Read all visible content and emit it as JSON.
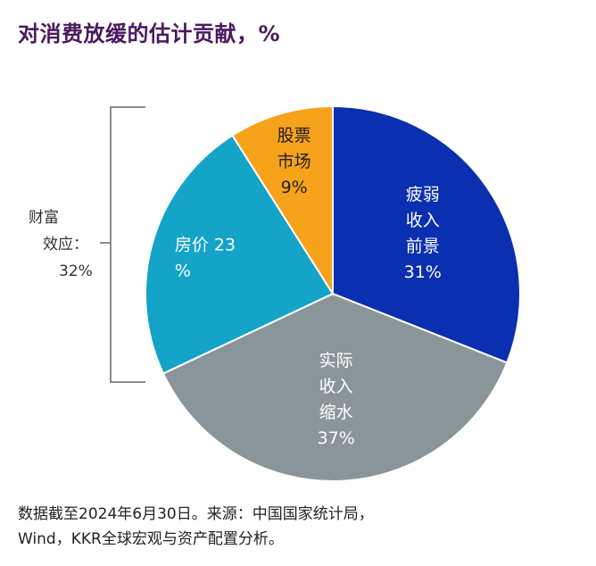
{
  "title": "对消费放缓的估计贡献，%",
  "chart_data": {
    "type": "pie",
    "slices": [
      {
        "lines": [
          "疲弱",
          "收入",
          "前景",
          "31%"
        ],
        "value": 31,
        "color": "#0a2fb0",
        "text_color": "#ffffff"
      },
      {
        "lines": [
          "实际",
          "收入",
          "缩水",
          "37%"
        ],
        "value": 37,
        "color": "#8a959a",
        "text_color": "#ffffff"
      },
      {
        "lines": [
          "房价 23",
          "%"
        ],
        "value": 23,
        "color": "#13a4c8",
        "text_color": "#ffffff"
      },
      {
        "lines": [
          "股票",
          "市场",
          "9%"
        ],
        "value": 9,
        "color": "#f7a21b",
        "text_color": "#222222"
      }
    ],
    "bracket_label": [
      "财富",
      "效应：",
      "32%"
    ]
  },
  "note": [
    "数据截至2024年6月30日。来源：中国国家统计局，",
    "Wind，KKR全球宏观与资产配置分析。"
  ]
}
